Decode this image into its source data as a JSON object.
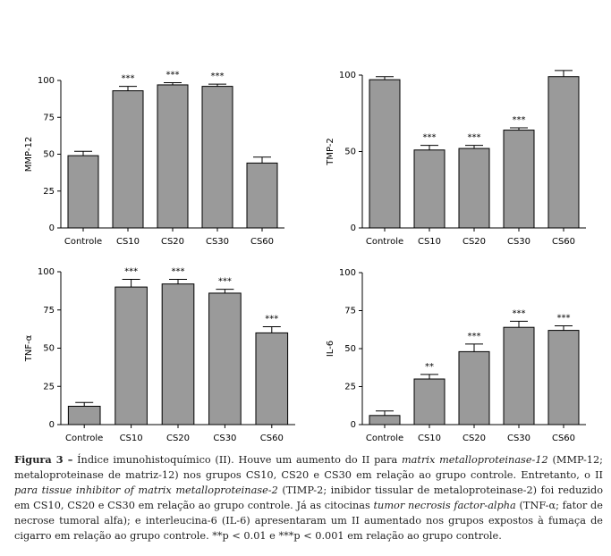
{
  "chart_data": [
    {
      "type": "bar",
      "ylabel": "MMP-12",
      "categories": [
        "Controle",
        "CS10",
        "CS20",
        "CS30",
        "CS60"
      ],
      "values": [
        49,
        93,
        97,
        96,
        44
      ],
      "errors": [
        3,
        3,
        1.5,
        1.5,
        4
      ],
      "annotations": [
        null,
        "***",
        "***",
        "***",
        null
      ],
      "color": "#9a9a9a",
      "ylim": [
        0,
        100
      ],
      "yticks": [
        0,
        25,
        50,
        75,
        100
      ]
    },
    {
      "type": "bar",
      "ylabel": "TMP-2",
      "categories": [
        "Controle",
        "CS10",
        "CS20",
        "CS30",
        "CS60"
      ],
      "values": [
        97,
        51,
        52,
        64,
        99
      ],
      "errors": [
        2,
        3,
        2,
        1.5,
        4
      ],
      "annotations": [
        null,
        "***",
        "***",
        "***",
        null
      ],
      "color": "#9a9a9a",
      "ylim": [
        0,
        100
      ],
      "yticks": [
        0,
        50,
        100
      ]
    },
    {
      "type": "bar",
      "ylabel": "TNF-α",
      "categories": [
        "Controle",
        "CS10",
        "CS20",
        "CS30",
        "CS60"
      ],
      "values": [
        12,
        90,
        92,
        86,
        60
      ],
      "errors": [
        2.5,
        5,
        3,
        2.5,
        4
      ],
      "annotations": [
        null,
        "***",
        "***",
        "***",
        "***"
      ],
      "color": "#9a9a9a",
      "ylim": [
        0,
        100
      ],
      "yticks": [
        0,
        25,
        50,
        75,
        100
      ]
    },
    {
      "type": "bar",
      "ylabel": "IL-6",
      "categories": [
        "Controle",
        "CS10",
        "CS20",
        "CS30",
        "CS60"
      ],
      "values": [
        6,
        30,
        48,
        64,
        62
      ],
      "errors": [
        3,
        3,
        5,
        4,
        3
      ],
      "annotations": [
        null,
        "**",
        "***",
        "***",
        "***"
      ],
      "color": "#9a9a9a",
      "ylim": [
        0,
        100
      ],
      "yticks": [
        0,
        25,
        50,
        75,
        100
      ]
    }
  ],
  "caption": [
    {
      "text": "Figura 3 –",
      "style": "bold"
    },
    {
      "text": " Índice imunohistoquímico (II). Houve um aumento do II para ",
      "style": "normal"
    },
    {
      "text": "matrix metalloproteinase-12",
      "style": "italic"
    },
    {
      "text": " (MMP-12; metaloproteinase de matriz-12) nos grupos CS10, CS20 e CS30 em relação ao grupo controle. Entretanto, o II ",
      "style": "normal"
    },
    {
      "text": "para tissue inhibitor of matrix metalloproteinase-2",
      "style": "italic"
    },
    {
      "text": " (TIMP-2; inibidor tissular de metaloproteinase-2) foi reduzido em CS10, CS20 e CS30 em relação ao grupo controle. Já as citocinas ",
      "style": "normal"
    },
    {
      "text": "tumor necrosis factor-alpha",
      "style": "italic"
    },
    {
      "text": " (TNF-α; fator de necrose tumoral alfa); e interleucina-6 (IL-6) apresentaram um II aumentado nos grupos expostos à fumaça de cigarro em relação ao grupo controle. **p < 0.01 e ***p < 0.001 em relação ao grupo controle.",
      "style": "normal"
    }
  ]
}
